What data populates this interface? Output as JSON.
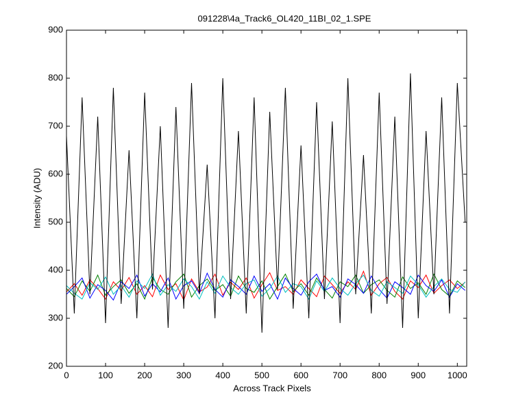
{
  "chart_data": {
    "type": "line",
    "title": "091228\\4a_Track6_OL420_11BI_02_1.SPE",
    "xlabel": "Across Track Pixels",
    "ylabel": "Intensity (ADU)",
    "x": [
      0,
      20,
      40,
      60,
      80,
      100,
      120,
      140,
      160,
      180,
      200,
      220,
      240,
      260,
      280,
      300,
      320,
      340,
      360,
      380,
      400,
      420,
      440,
      460,
      480,
      500,
      520,
      540,
      560,
      580,
      600,
      620,
      640,
      660,
      680,
      700,
      720,
      740,
      760,
      780,
      800,
      820,
      840,
      860,
      880,
      900,
      920,
      940,
      960,
      980,
      1000,
      1020
    ],
    "series": [
      {
        "color": "#ff0000",
        "values": [
          355,
          372,
          348,
          380,
          362,
          340,
          376,
          358,
          385,
          350,
          368,
          345,
          390,
          360,
          372,
          338,
          382,
          355,
          365,
          392,
          348,
          375,
          360,
          384,
          342,
          370,
          395,
          358,
          366,
          350,
          380,
          362,
          345,
          388,
          370,
          352,
          376,
          360,
          398,
          348,
          372,
          385,
          356,
          340,
          378,
          364,
          390,
          352,
          368,
          380,
          362,
          375
        ]
      },
      {
        "color": "#008000",
        "values": [
          362,
          345,
          378,
          356,
          390,
          348,
          366,
          380,
          352,
          372,
          340,
          385,
          360,
          350,
          376,
          392,
          344,
          368,
          382,
          358,
          370,
          346,
          388,
          362,
          354,
          378,
          340,
          366,
          392,
          356,
          372,
          348,
          384,
          360,
          342,
          376,
          366,
          390,
          352,
          370,
          380,
          358,
          344,
          386,
          362,
          374,
          350,
          392,
          360,
          346,
          378,
          364
        ]
      },
      {
        "color": "#0000ff",
        "values": [
          350,
          366,
          384,
          342,
          370,
          358,
          338,
          376,
          362,
          390,
          346,
          372,
          355,
          384,
          340,
          368,
          378,
          352,
          394,
          360,
          344,
          380,
          366,
          350,
          388,
          356,
          372,
          340,
          384,
          362,
          348,
          376,
          392,
          358,
          366,
          344,
          382,
          370,
          352,
          388,
          360,
          342,
          376,
          364,
          350,
          390,
          368,
          356,
          380,
          344,
          372,
          358
        ]
      },
      {
        "color": "#00bfbf",
        "values": [
          368,
          352,
          340,
          374,
          360,
          386,
          350,
          368,
          344,
          378,
          362,
          392,
          348,
          370,
          356,
          382,
          366,
          340,
          376,
          352,
          388,
          364,
          350,
          372,
          380,
          346,
          362,
          388,
          354,
          372,
          366,
          340,
          378,
          356,
          384,
          362,
          348,
          372,
          390,
          358,
          346,
          376,
          364,
          352,
          388,
          370,
          344,
          366,
          382,
          360,
          354,
          376
        ]
      },
      {
        "color": "#000000",
        "values": [
          680,
          310,
          760,
          350,
          720,
          290,
          780,
          330,
          650,
          300,
          770,
          360,
          700,
          280,
          740,
          320,
          790,
          350,
          620,
          300,
          800,
          340,
          690,
          310,
          760,
          270,
          730,
          360,
          780,
          320,
          660,
          300,
          750,
          340,
          710,
          290,
          800,
          350,
          640,
          310,
          770,
          330,
          720,
          280,
          810,
          300,
          690,
          350,
          760,
          310,
          790,
          500
        ]
      }
    ],
    "xlim": [
      0,
      1024
    ],
    "xticks": [
      0,
      100,
      200,
      300,
      400,
      500,
      600,
      700,
      800,
      900,
      1000
    ],
    "ylim": [
      200,
      900
    ],
    "yticks": [
      200,
      300,
      400,
      500,
      600,
      700,
      800,
      900
    ],
    "grid": false
  }
}
